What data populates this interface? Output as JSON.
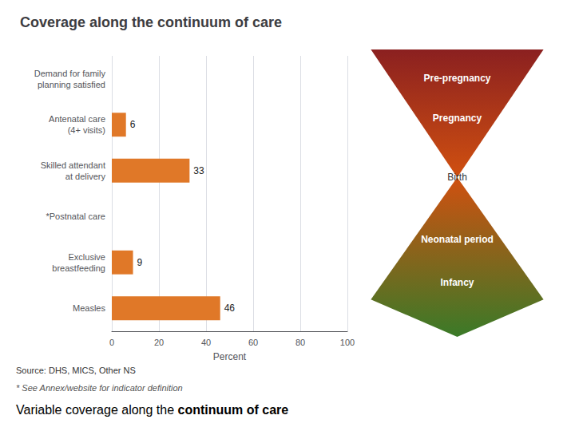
{
  "chart_data": {
    "type": "bar",
    "orientation": "horizontal",
    "title": "Coverage along the continuum of care",
    "categories": [
      "Demand for family\nplanning satisfied",
      "Antenatal care\n(4+ visits)",
      "Skilled attendant\nat delivery",
      "*Postnatal care",
      "Exclusive\nbreastfeeding",
      "Measles"
    ],
    "values": [
      null,
      6,
      33,
      null,
      9,
      46
    ],
    "color": "#E07828",
    "xlabel": "Percent",
    "xlim": [
      0,
      100
    ],
    "xticks": [
      0,
      20,
      40,
      60,
      80,
      100
    ],
    "grid": true,
    "data_labels": true,
    "annotations": [
      "Pre-pregnancy",
      "Pregnancy",
      "Birth",
      "Neonatal period",
      "Infancy"
    ],
    "source": "Source: DHS, MICS, Other NS",
    "footnote": "* See Annex/website for indicator definition",
    "caption": [
      "Variable coverage along the ",
      "continuum of care"
    ]
  }
}
